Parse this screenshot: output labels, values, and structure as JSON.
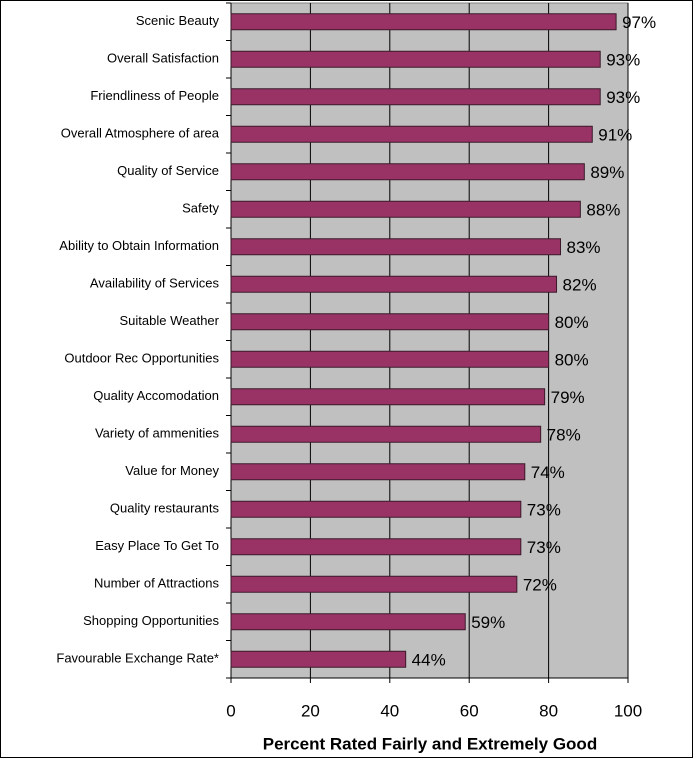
{
  "chart_data": {
    "type": "bar",
    "orientation": "horizontal",
    "x_label": "Percent Rated Fairly and Extremely Good",
    "categories": [
      "Scenic Beauty",
      "Overall Satisfaction",
      "Friendliness of People",
      "Overall Atmosphere of area",
      "Quality of Service",
      "Safety",
      "Ability to Obtain Information",
      "Availability of Services",
      "Suitable Weather",
      "Outdoor Rec Opportunities",
      "Quality Accomodation",
      "Variety of ammenities",
      "Value for Money",
      "Quality restaurants",
      "Easy Place To Get To",
      "Number of Attractions",
      "Shopping Opportunities",
      "Favourable Exchange Rate*"
    ],
    "values": [
      97,
      93,
      93,
      91,
      89,
      88,
      83,
      82,
      80,
      80,
      79,
      78,
      74,
      73,
      73,
      72,
      59,
      44
    ],
    "value_labels": [
      "97%",
      "93%",
      "93%",
      "91%",
      "89%",
      "88%",
      "83%",
      "82%",
      "80%",
      "80%",
      "79%",
      "78%",
      "74%",
      "73%",
      "73%",
      "72%",
      "59%",
      "44%"
    ],
    "color": "#993366",
    "xlim": [
      0,
      100
    ],
    "xticks": [
      0,
      20,
      40,
      60,
      80,
      100
    ],
    "grid": true
  }
}
